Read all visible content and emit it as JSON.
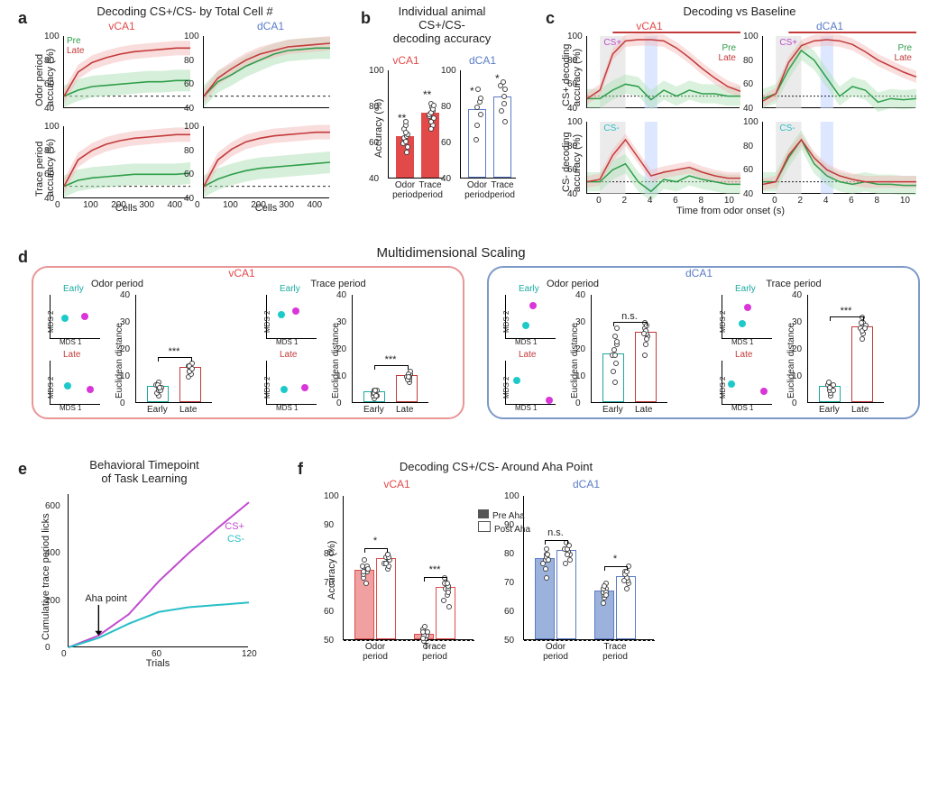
{
  "panelA": {
    "label": "a",
    "title": "Decoding CS+/CS- by Total Cell #",
    "region1": "vCA1",
    "region2": "dCA1",
    "legend_pre": "Pre",
    "legend_late": "Late",
    "color_pre": "#2e9e4a",
    "color_late": "#c33a3a",
    "color_pre_fill": "#aee0b6",
    "color_late_fill": "#f3b9b9",
    "ylabel_top": "Odor period\naccuracy (%)",
    "ylabel_bot": "Trace period\naccuracy (%)",
    "xlabel": "Cells",
    "xlim": [
      0,
      450
    ],
    "xticks": [
      0,
      100,
      200,
      300,
      400
    ],
    "ylim": [
      40,
      100
    ],
    "yticks": [
      40,
      60,
      80,
      100
    ],
    "chance": 50,
    "charts": {
      "top_left": {
        "pre": [
          [
            0,
            50
          ],
          [
            50,
            55
          ],
          [
            100,
            58
          ],
          [
            150,
            59
          ],
          [
            200,
            60
          ],
          [
            250,
            61
          ],
          [
            300,
            62
          ],
          [
            350,
            62
          ],
          [
            400,
            63
          ],
          [
            450,
            63
          ]
        ],
        "late": [
          [
            0,
            50
          ],
          [
            50,
            70
          ],
          [
            100,
            78
          ],
          [
            150,
            82
          ],
          [
            200,
            85
          ],
          [
            250,
            87
          ],
          [
            300,
            88
          ],
          [
            350,
            89
          ],
          [
            400,
            90
          ],
          [
            450,
            90
          ]
        ]
      },
      "top_right": {
        "pre": [
          [
            0,
            50
          ],
          [
            50,
            62
          ],
          [
            100,
            68
          ],
          [
            150,
            75
          ],
          [
            200,
            80
          ],
          [
            250,
            85
          ],
          [
            300,
            88
          ],
          [
            350,
            89
          ],
          [
            400,
            90
          ],
          [
            450,
            90
          ]
        ],
        "late": [
          [
            0,
            50
          ],
          [
            50,
            65
          ],
          [
            100,
            73
          ],
          [
            150,
            80
          ],
          [
            200,
            85
          ],
          [
            250,
            88
          ],
          [
            300,
            91
          ],
          [
            350,
            92
          ],
          [
            400,
            93
          ],
          [
            450,
            94
          ]
        ]
      },
      "bot_left": {
        "pre": [
          [
            0,
            50
          ],
          [
            50,
            55
          ],
          [
            100,
            57
          ],
          [
            150,
            58
          ],
          [
            200,
            59
          ],
          [
            250,
            60
          ],
          [
            300,
            60
          ],
          [
            350,
            60
          ],
          [
            400,
            60
          ],
          [
            450,
            61
          ]
        ],
        "late": [
          [
            0,
            50
          ],
          [
            50,
            72
          ],
          [
            100,
            80
          ],
          [
            150,
            85
          ],
          [
            200,
            88
          ],
          [
            250,
            90
          ],
          [
            300,
            91
          ],
          [
            350,
            92
          ],
          [
            400,
            93
          ],
          [
            450,
            93
          ]
        ]
      },
      "bot_right": {
        "pre": [
          [
            0,
            50
          ],
          [
            50,
            56
          ],
          [
            100,
            60
          ],
          [
            150,
            63
          ],
          [
            200,
            65
          ],
          [
            250,
            66
          ],
          [
            300,
            67
          ],
          [
            350,
            68
          ],
          [
            400,
            69
          ],
          [
            450,
            70
          ]
        ],
        "late": [
          [
            0,
            50
          ],
          [
            50,
            72
          ],
          [
            100,
            81
          ],
          [
            150,
            87
          ],
          [
            200,
            90
          ],
          [
            250,
            92
          ],
          [
            300,
            93
          ],
          [
            350,
            94
          ],
          [
            400,
            95
          ],
          [
            450,
            95
          ]
        ]
      }
    }
  },
  "panelB": {
    "label": "b",
    "title": "Individual animal\nCS+/CS-\ndecoding accuracy",
    "region1": "vCA1",
    "region2": "dCA1",
    "vCA1_color": "#e24a4a",
    "dCA1_color": "#5a7cc7",
    "ylabel": "Accuracy (%)",
    "yticks": [
      40,
      60,
      80,
      100
    ],
    "xlabels": [
      "Odor\nperiod",
      "Trace\nperiod"
    ],
    "data": {
      "vCA1": {
        "odor": 63,
        "trace": 76,
        "sig": [
          "**",
          "**"
        ],
        "points_odor": [
          58,
          60,
          62,
          63,
          64,
          65,
          68,
          70,
          72,
          55,
          61,
          66
        ],
        "points_trace": [
          70,
          72,
          75,
          76,
          78,
          80,
          82,
          68,
          74,
          77,
          79,
          81
        ]
      },
      "dCA1": {
        "odor": 78,
        "trace": 85,
        "sig": [
          "*",
          "*"
        ],
        "points_odor": [
          62,
          70,
          76,
          80,
          83,
          85,
          90
        ],
        "points_trace": [
          72,
          78,
          82,
          86,
          90,
          92,
          94
        ]
      }
    }
  },
  "panelC": {
    "label": "c",
    "title": "Decoding vs Baseline",
    "region1": "vCA1",
    "region2": "dCA1",
    "legend_pre": "Pre",
    "legend_late": "Late",
    "color_pre": "#2e9e4a",
    "color_late": "#c33a3a",
    "csplus_label": "CS+",
    "csminus_label": "CS-",
    "csplus_color": "#c04bcf",
    "csminus_color": "#27bfc7",
    "ylabel_top": "CS+ decoding\naccuracy (%)",
    "ylabel_bot": "CS- decoding\naccuracy (%)",
    "xlabel": "Time from odor onset (s)",
    "xticks": [
      0,
      2,
      4,
      6,
      8,
      10
    ],
    "yticks": [
      40,
      60,
      80,
      100
    ],
    "chance": 50,
    "odor_window": [
      0,
      2
    ],
    "reward_window": [
      3.5,
      4.5
    ],
    "charts": {
      "top_left": {
        "pre": [
          [
            -1,
            48
          ],
          [
            0,
            48
          ],
          [
            1,
            55
          ],
          [
            2,
            60
          ],
          [
            3,
            58
          ],
          [
            4,
            47
          ],
          [
            5,
            55
          ],
          [
            6,
            50
          ],
          [
            7,
            55
          ],
          [
            8,
            52
          ],
          [
            9,
            52
          ],
          [
            10,
            50
          ],
          [
            11,
            50
          ]
        ],
        "late": [
          [
            -1,
            48
          ],
          [
            0,
            55
          ],
          [
            1,
            85
          ],
          [
            2,
            96
          ],
          [
            3,
            97
          ],
          [
            4,
            97
          ],
          [
            5,
            96
          ],
          [
            6,
            90
          ],
          [
            7,
            82
          ],
          [
            8,
            73
          ],
          [
            9,
            65
          ],
          [
            10,
            58
          ],
          [
            11,
            54
          ]
        ]
      },
      "top_right": {
        "pre": [
          [
            -1,
            48
          ],
          [
            0,
            52
          ],
          [
            1,
            72
          ],
          [
            2,
            88
          ],
          [
            3,
            80
          ],
          [
            4,
            65
          ],
          [
            5,
            50
          ],
          [
            6,
            58
          ],
          [
            7,
            55
          ],
          [
            8,
            45
          ],
          [
            9,
            48
          ],
          [
            10,
            47
          ],
          [
            11,
            48
          ]
        ],
        "late": [
          [
            -1,
            46
          ],
          [
            0,
            52
          ],
          [
            1,
            78
          ],
          [
            2,
            92
          ],
          [
            3,
            96
          ],
          [
            4,
            97
          ],
          [
            5,
            96
          ],
          [
            6,
            93
          ],
          [
            7,
            87
          ],
          [
            8,
            80
          ],
          [
            9,
            75
          ],
          [
            10,
            70
          ],
          [
            11,
            66
          ]
        ]
      },
      "bot_left": {
        "pre": [
          [
            -1,
            50
          ],
          [
            0,
            50
          ],
          [
            1,
            60
          ],
          [
            2,
            65
          ],
          [
            3,
            50
          ],
          [
            4,
            42
          ],
          [
            5,
            52
          ],
          [
            6,
            50
          ],
          [
            7,
            55
          ],
          [
            8,
            52
          ],
          [
            9,
            50
          ],
          [
            10,
            48
          ],
          [
            11,
            48
          ]
        ],
        "late": [
          [
            -1,
            50
          ],
          [
            0,
            52
          ],
          [
            1,
            72
          ],
          [
            2,
            85
          ],
          [
            3,
            70
          ],
          [
            4,
            55
          ],
          [
            5,
            58
          ],
          [
            6,
            60
          ],
          [
            7,
            62
          ],
          [
            8,
            58
          ],
          [
            9,
            55
          ],
          [
            10,
            53
          ],
          [
            11,
            53
          ]
        ]
      },
      "bot_right": {
        "pre": [
          [
            -1,
            50
          ],
          [
            0,
            50
          ],
          [
            1,
            70
          ],
          [
            2,
            85
          ],
          [
            3,
            65
          ],
          [
            4,
            55
          ],
          [
            5,
            50
          ],
          [
            6,
            48
          ],
          [
            7,
            50
          ],
          [
            8,
            48
          ],
          [
            9,
            48
          ],
          [
            10,
            47
          ],
          [
            11,
            47
          ]
        ],
        "late": [
          [
            -1,
            48
          ],
          [
            0,
            50
          ],
          [
            1,
            72
          ],
          [
            2,
            85
          ],
          [
            3,
            70
          ],
          [
            4,
            60
          ],
          [
            5,
            55
          ],
          [
            6,
            52
          ],
          [
            7,
            50
          ],
          [
            8,
            50
          ],
          [
            9,
            50
          ],
          [
            10,
            50
          ],
          [
            11,
            50
          ]
        ]
      }
    }
  },
  "panelD": {
    "label": "d",
    "title": "Multidimensional Scaling",
    "region1": "vCA1",
    "region2": "dCA1",
    "color_vCA1": "#e99696",
    "color_dCA1": "#7d99c9",
    "early_label": "Early",
    "late_label": "Late",
    "early_color": "#1ba9a0",
    "late_color": "#c33a3a",
    "mds1": "MDS 1",
    "mds2": "MDS 2",
    "ylabel": "Euclidean distance",
    "yticks": [
      0,
      10,
      20,
      30,
      40
    ],
    "xlabels": [
      "Early",
      "Late"
    ],
    "odor_title": "Odor period",
    "trace_title": "Trace period",
    "sig": {
      "vCA1_odor": "***",
      "vCA1_trace": "***",
      "dCA1_odor": "n.s.",
      "dCA1_trace": "***"
    },
    "dot_cyan": "#1ec9c9",
    "dot_magenta": "#d936d9",
    "bars": {
      "vCA1_odor": {
        "early": 6,
        "late": 13,
        "points_e": [
          3,
          4,
          5,
          6,
          7,
          8,
          5,
          6,
          7,
          6
        ],
        "points_l": [
          10,
          11,
          12,
          13,
          14,
          15,
          13,
          12,
          14,
          13
        ]
      },
      "vCA1_trace": {
        "early": 4,
        "late": 10,
        "points_e": [
          2,
          3,
          4,
          5,
          3,
          4,
          5,
          4,
          3,
          5
        ],
        "points_l": [
          8,
          9,
          10,
          11,
          12,
          10,
          9,
          11,
          10,
          10
        ]
      },
      "dCA1_odor": {
        "early": 18,
        "late": 26,
        "points_e": [
          8,
          12,
          15,
          18,
          22,
          25,
          28,
          20,
          23,
          18
        ],
        "points_l": [
          18,
          22,
          25,
          28,
          30,
          26,
          24,
          27,
          29,
          26
        ]
      },
      "dCA1_trace": {
        "early": 6,
        "late": 28,
        "points_e": [
          3,
          4,
          5,
          6,
          7,
          8,
          6,
          7,
          5,
          6
        ],
        "points_l": [
          24,
          26,
          28,
          30,
          32,
          28,
          27,
          29,
          28,
          30
        ]
      }
    }
  },
  "panelE": {
    "label": "e",
    "title": "Behavioral Timepoint\nof Task Learning",
    "csplus_label": "CS+",
    "csminus_label": "CS-",
    "csplus_color": "#c04bcf",
    "csminus_color": "#27bfc7",
    "aha_label": "Aha point",
    "xlabel": "Trials",
    "ylabel": "Cumulative trace period licks",
    "xticks": [
      0,
      60,
      120
    ],
    "yticks": [
      0,
      200,
      400,
      600
    ],
    "aha_x": 20,
    "csplus_line": [
      [
        0,
        0
      ],
      [
        20,
        50
      ],
      [
        40,
        140
      ],
      [
        60,
        280
      ],
      [
        80,
        400
      ],
      [
        100,
        510
      ],
      [
        120,
        615
      ]
    ],
    "csminus_line": [
      [
        0,
        0
      ],
      [
        20,
        40
      ],
      [
        40,
        100
      ],
      [
        60,
        150
      ],
      [
        80,
        170
      ],
      [
        100,
        180
      ],
      [
        120,
        190
      ]
    ]
  },
  "panelF": {
    "label": "f",
    "title": "Decoding CS+/CS- Around Aha Point",
    "region1": "vCA1",
    "region2": "dCA1",
    "legend_pre": "Pre Aha",
    "legend_post": "Post Aha",
    "vCA1_fill": "#f0a0a0",
    "vCA1_line": "#e24a4a",
    "dCA1_fill": "#9bb3dc",
    "dCA1_line": "#5a7cc7",
    "ylabel": "Accuracy (%)",
    "yticks": [
      50,
      60,
      70,
      80,
      90,
      100
    ],
    "xlabels": [
      "Odor\nperiod",
      "Trace\nperiod"
    ],
    "chance": 50,
    "sig": {
      "vCA1_odor": "*",
      "vCA1_trace": "***",
      "dCA1_odor": "n.s.",
      "dCA1_trace": "*"
    },
    "data": {
      "vCA1": {
        "odor_pre": 74,
        "odor_post": 78,
        "trace_pre": 52,
        "trace_post": 68,
        "pts_odor_pre": [
          70,
          72,
          74,
          75,
          76,
          78,
          73,
          74,
          75,
          76
        ],
        "pts_odor_post": [
          75,
          76,
          77,
          78,
          79,
          80,
          78,
          77,
          79,
          80
        ],
        "pts_trace_pre": [
          48,
          50,
          51,
          52,
          53,
          54,
          55,
          52,
          51,
          53
        ],
        "pts_trace_post": [
          62,
          64,
          66,
          68,
          70,
          72,
          68,
          67,
          69,
          70
        ]
      },
      "dCA1": {
        "odor_pre": 78,
        "odor_post": 81,
        "trace_pre": 67,
        "trace_post": 72,
        "pts_odor_pre": [
          72,
          75,
          77,
          78,
          80,
          82,
          78,
          79,
          80,
          78
        ],
        "pts_odor_post": [
          77,
          78,
          80,
          81,
          82,
          84,
          81,
          82,
          80,
          83
        ],
        "pts_trace_pre": [
          63,
          65,
          66,
          67,
          68,
          70,
          67,
          68,
          66,
          69
        ],
        "pts_trace_post": [
          68,
          70,
          71,
          72,
          74,
          76,
          72,
          73,
          71,
          74
        ]
      }
    }
  }
}
